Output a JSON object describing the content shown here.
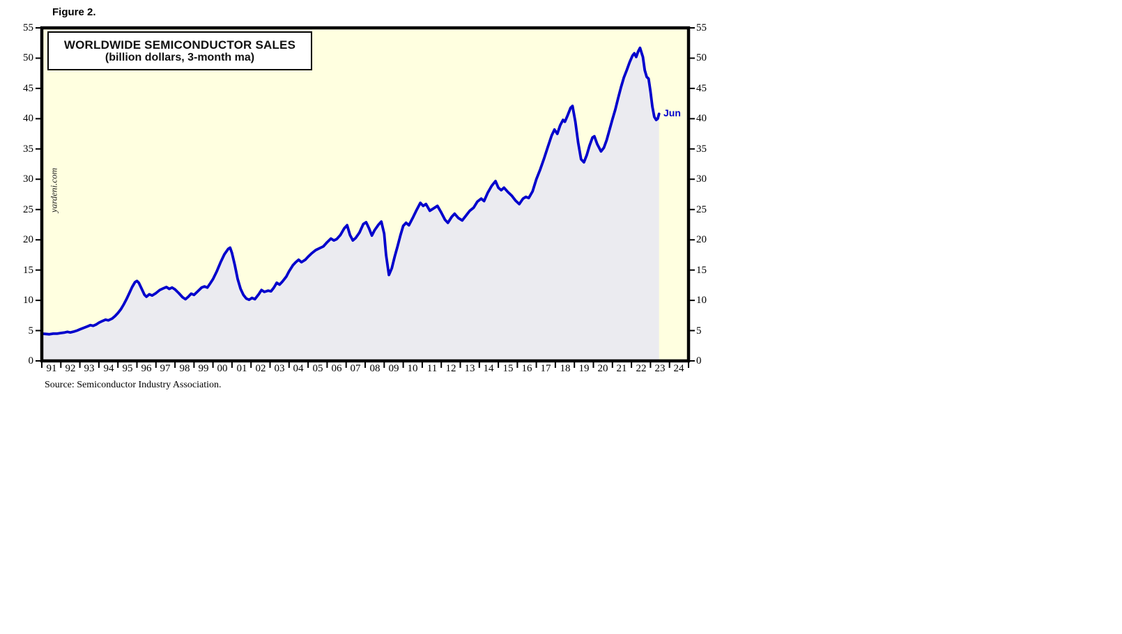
{
  "figure_label": "Figure 2.",
  "chart_title": "WORLDWIDE SEMICONDUCTOR SALES",
  "chart_subtitle": "(billion dollars, 3-month ma)",
  "watermark": "yardeni.com",
  "last_point_label": "Jun",
  "source": "Source: Semiconductor Industry Association.",
  "colors": {
    "plot_background": "#FFFFE0",
    "area_fill": "#EBEBF0",
    "line": "#0000CC",
    "axis": "#000000",
    "last_point_label": "#0000CC"
  },
  "chart_data": {
    "type": "line",
    "title": "WORLDWIDE SEMICONDUCTOR SALES",
    "subtitle": "(billion dollars, 3-month ma)",
    "ylabel": "billion dollars (3-month moving average)",
    "xlabel": "",
    "xlim": [
      1991,
      2025
    ],
    "ylim": [
      0,
      55
    ],
    "yticks": [
      0,
      5,
      10,
      15,
      20,
      25,
      30,
      35,
      40,
      45,
      50,
      55
    ],
    "xtick_labels": [
      "91",
      "92",
      "93",
      "94",
      "95",
      "96",
      "97",
      "98",
      "99",
      "00",
      "01",
      "02",
      "03",
      "04",
      "05",
      "06",
      "07",
      "08",
      "09",
      "10",
      "11",
      "12",
      "13",
      "14",
      "15",
      "16",
      "17",
      "18",
      "19",
      "20",
      "21",
      "22",
      "23",
      "24"
    ],
    "grid": false,
    "legend_position": "none",
    "last_point": {
      "label": "Jun",
      "x": 2023.45,
      "y": 40.8
    },
    "series": [
      {
        "name": "Worldwide semiconductor sales",
        "color": "#0000CC",
        "points": [
          [
            1991.0,
            4.5
          ],
          [
            1991.2,
            4.45
          ],
          [
            1991.4,
            4.4
          ],
          [
            1991.6,
            4.5
          ],
          [
            1991.8,
            4.5
          ],
          [
            1992.0,
            4.6
          ],
          [
            1992.2,
            4.7
          ],
          [
            1992.35,
            4.8
          ],
          [
            1992.5,
            4.7
          ],
          [
            1992.7,
            4.85
          ],
          [
            1992.85,
            5.0
          ],
          [
            1993.0,
            5.2
          ],
          [
            1993.2,
            5.45
          ],
          [
            1993.4,
            5.7
          ],
          [
            1993.55,
            5.9
          ],
          [
            1993.7,
            5.8
          ],
          [
            1993.85,
            6.0
          ],
          [
            1994.0,
            6.3
          ],
          [
            1994.2,
            6.6
          ],
          [
            1994.35,
            6.8
          ],
          [
            1994.5,
            6.7
          ],
          [
            1994.7,
            7.0
          ],
          [
            1994.85,
            7.4
          ],
          [
            1995.0,
            7.9
          ],
          [
            1995.15,
            8.5
          ],
          [
            1995.3,
            9.3
          ],
          [
            1995.45,
            10.2
          ],
          [
            1995.6,
            11.2
          ],
          [
            1995.75,
            12.2
          ],
          [
            1995.9,
            13.0
          ],
          [
            1996.0,
            13.2
          ],
          [
            1996.1,
            12.9
          ],
          [
            1996.25,
            11.9
          ],
          [
            1996.4,
            10.9
          ],
          [
            1996.5,
            10.6
          ],
          [
            1996.65,
            11.0
          ],
          [
            1996.8,
            10.8
          ],
          [
            1997.0,
            11.2
          ],
          [
            1997.2,
            11.7
          ],
          [
            1997.4,
            12.0
          ],
          [
            1997.55,
            12.2
          ],
          [
            1997.7,
            11.9
          ],
          [
            1997.85,
            12.1
          ],
          [
            1998.0,
            11.8
          ],
          [
            1998.2,
            11.2
          ],
          [
            1998.4,
            10.5
          ],
          [
            1998.55,
            10.2
          ],
          [
            1998.7,
            10.6
          ],
          [
            1998.85,
            11.1
          ],
          [
            1999.0,
            10.9
          ],
          [
            1999.2,
            11.5
          ],
          [
            1999.4,
            12.1
          ],
          [
            1999.55,
            12.3
          ],
          [
            1999.7,
            12.1
          ],
          [
            1999.85,
            12.8
          ],
          [
            2000.0,
            13.5
          ],
          [
            2000.2,
            14.8
          ],
          [
            2000.4,
            16.3
          ],
          [
            2000.6,
            17.6
          ],
          [
            2000.8,
            18.5
          ],
          [
            2000.9,
            18.7
          ],
          [
            2001.0,
            17.8
          ],
          [
            2001.15,
            15.8
          ],
          [
            2001.3,
            13.5
          ],
          [
            2001.45,
            11.9
          ],
          [
            2001.6,
            10.9
          ],
          [
            2001.75,
            10.3
          ],
          [
            2001.9,
            10.1
          ],
          [
            2002.05,
            10.4
          ],
          [
            2002.2,
            10.2
          ],
          [
            2002.4,
            11.0
          ],
          [
            2002.55,
            11.7
          ],
          [
            2002.7,
            11.4
          ],
          [
            2002.9,
            11.6
          ],
          [
            2003.05,
            11.5
          ],
          [
            2003.2,
            12.1
          ],
          [
            2003.35,
            12.9
          ],
          [
            2003.5,
            12.6
          ],
          [
            2003.65,
            13.1
          ],
          [
            2003.85,
            13.9
          ],
          [
            2004.0,
            14.8
          ],
          [
            2004.2,
            15.8
          ],
          [
            2004.35,
            16.3
          ],
          [
            2004.5,
            16.7
          ],
          [
            2004.65,
            16.3
          ],
          [
            2004.85,
            16.7
          ],
          [
            2005.0,
            17.2
          ],
          [
            2005.2,
            17.8
          ],
          [
            2005.4,
            18.3
          ],
          [
            2005.6,
            18.6
          ],
          [
            2005.8,
            18.9
          ],
          [
            2006.0,
            19.6
          ],
          [
            2006.2,
            20.2
          ],
          [
            2006.35,
            19.9
          ],
          [
            2006.5,
            20.1
          ],
          [
            2006.7,
            20.8
          ],
          [
            2006.9,
            21.9
          ],
          [
            2007.05,
            22.4
          ],
          [
            2007.2,
            20.8
          ],
          [
            2007.35,
            19.9
          ],
          [
            2007.5,
            20.3
          ],
          [
            2007.7,
            21.2
          ],
          [
            2007.9,
            22.6
          ],
          [
            2008.05,
            22.9
          ],
          [
            2008.2,
            21.9
          ],
          [
            2008.35,
            20.7
          ],
          [
            2008.5,
            21.6
          ],
          [
            2008.7,
            22.5
          ],
          [
            2008.85,
            23.0
          ],
          [
            2009.0,
            21.0
          ],
          [
            2009.1,
            17.5
          ],
          [
            2009.25,
            14.2
          ],
          [
            2009.4,
            15.3
          ],
          [
            2009.55,
            17.2
          ],
          [
            2009.7,
            18.9
          ],
          [
            2009.85,
            20.7
          ],
          [
            2010.0,
            22.3
          ],
          [
            2010.15,
            22.8
          ],
          [
            2010.3,
            22.4
          ],
          [
            2010.5,
            23.6
          ],
          [
            2010.7,
            24.9
          ],
          [
            2010.9,
            26.1
          ],
          [
            2011.05,
            25.6
          ],
          [
            2011.2,
            25.9
          ],
          [
            2011.4,
            24.8
          ],
          [
            2011.6,
            25.2
          ],
          [
            2011.8,
            25.6
          ],
          [
            2012.0,
            24.5
          ],
          [
            2012.2,
            23.3
          ],
          [
            2012.35,
            22.8
          ],
          [
            2012.55,
            23.8
          ],
          [
            2012.7,
            24.3
          ],
          [
            2012.9,
            23.6
          ],
          [
            2013.1,
            23.2
          ],
          [
            2013.3,
            24.0
          ],
          [
            2013.5,
            24.8
          ],
          [
            2013.7,
            25.3
          ],
          [
            2013.9,
            26.3
          ],
          [
            2014.1,
            26.8
          ],
          [
            2014.25,
            26.4
          ],
          [
            2014.45,
            27.8
          ],
          [
            2014.65,
            28.9
          ],
          [
            2014.85,
            29.7
          ],
          [
            2015.0,
            28.6
          ],
          [
            2015.15,
            28.2
          ],
          [
            2015.3,
            28.6
          ],
          [
            2015.5,
            27.9
          ],
          [
            2015.7,
            27.3
          ],
          [
            2015.9,
            26.5
          ],
          [
            2016.1,
            25.9
          ],
          [
            2016.3,
            26.8
          ],
          [
            2016.45,
            27.1
          ],
          [
            2016.6,
            26.9
          ],
          [
            2016.8,
            28.0
          ],
          [
            2017.0,
            30.0
          ],
          [
            2017.2,
            31.6
          ],
          [
            2017.4,
            33.4
          ],
          [
            2017.6,
            35.3
          ],
          [
            2017.8,
            37.2
          ],
          [
            2017.95,
            38.2
          ],
          [
            2018.1,
            37.5
          ],
          [
            2018.25,
            38.9
          ],
          [
            2018.4,
            39.8
          ],
          [
            2018.5,
            39.5
          ],
          [
            2018.65,
            40.6
          ],
          [
            2018.8,
            41.8
          ],
          [
            2018.9,
            42.1
          ],
          [
            2019.05,
            39.5
          ],
          [
            2019.2,
            36.0
          ],
          [
            2019.35,
            33.3
          ],
          [
            2019.5,
            32.8
          ],
          [
            2019.65,
            34.0
          ],
          [
            2019.8,
            35.6
          ],
          [
            2019.95,
            36.9
          ],
          [
            2020.05,
            37.1
          ],
          [
            2020.2,
            35.8
          ],
          [
            2020.4,
            34.6
          ],
          [
            2020.55,
            35.2
          ],
          [
            2020.7,
            36.5
          ],
          [
            2020.85,
            38.2
          ],
          [
            2021.0,
            39.9
          ],
          [
            2021.15,
            41.5
          ],
          [
            2021.3,
            43.4
          ],
          [
            2021.45,
            45.2
          ],
          [
            2021.6,
            46.8
          ],
          [
            2021.75,
            48.0
          ],
          [
            2021.9,
            49.3
          ],
          [
            2022.05,
            50.4
          ],
          [
            2022.15,
            50.8
          ],
          [
            2022.25,
            50.2
          ],
          [
            2022.35,
            51.1
          ],
          [
            2022.45,
            51.7
          ],
          [
            2022.6,
            50.2
          ],
          [
            2022.7,
            48.0
          ],
          [
            2022.8,
            46.9
          ],
          [
            2022.9,
            46.6
          ],
          [
            2023.0,
            44.5
          ],
          [
            2023.1,
            42.0
          ],
          [
            2023.2,
            40.3
          ],
          [
            2023.3,
            39.8
          ],
          [
            2023.38,
            40.0
          ],
          [
            2023.45,
            40.8
          ]
        ]
      }
    ]
  }
}
